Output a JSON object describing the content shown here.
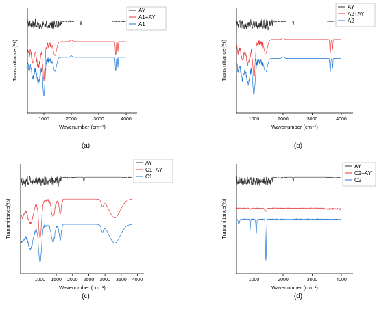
{
  "chart_data": [
    {
      "id": "a",
      "type": "line",
      "panel_label": "(a)",
      "xlabel": "Wavenumber (cm⁻¹)",
      "ylabel": "Transmittance (%)",
      "xlim": [
        400,
        4400
      ],
      "xticks": [
        1000,
        2000,
        3000,
        4000
      ],
      "legend_position": "top-right",
      "grid": false,
      "series": [
        {
          "name": "AY",
          "color": "#333333",
          "style": "ay",
          "offset": 0.12
        },
        {
          "name": "A1+AY",
          "color": "#e8393a",
          "style": "pair",
          "offset": 0.32
        },
        {
          "name": "A1",
          "color": "#1f77d4",
          "style": "pair",
          "offset": 0.47
        }
      ]
    },
    {
      "id": "b",
      "type": "line",
      "panel_label": "(b)",
      "xlabel": "Wavenumber (cm⁻¹)",
      "ylabel": "Transmittance (%)",
      "xlim": [
        400,
        4400
      ],
      "xticks": [
        1000,
        2000,
        3000,
        4000
      ],
      "legend_position": "top-right",
      "grid": false,
      "series": [
        {
          "name": "AY",
          "color": "#333333",
          "style": "ay",
          "offset": 0.12
        },
        {
          "name": "A2+AY",
          "color": "#e8393a",
          "style": "pair",
          "offset": 0.3
        },
        {
          "name": "A2",
          "color": "#1f77d4",
          "style": "pair",
          "offset": 0.48
        }
      ]
    },
    {
      "id": "c",
      "type": "line",
      "panel_label": "(c)",
      "xlabel": "Wavenumber (cm⁻¹)",
      "ylabel": "Transmittance(%)",
      "xlim": [
        400,
        4200
      ],
      "xticks": [
        1000,
        1500,
        2000,
        2500,
        3000,
        3500,
        4000
      ],
      "legend_position": "top-right",
      "grid": false,
      "series": [
        {
          "name": "AY",
          "color": "#333333",
          "style": "ay",
          "offset": 0.12
        },
        {
          "name": "C1+AY",
          "color": "#e8393a",
          "style": "broad",
          "offset": 0.32
        },
        {
          "name": "C1",
          "color": "#1f77d4",
          "style": "broad",
          "offset": 0.55
        }
      ]
    },
    {
      "id": "d",
      "type": "line",
      "panel_label": "(d)",
      "xlabel": "Wavenumber (cm⁻¹)",
      "ylabel": "Transmittance(%)",
      "xlim": [
        400,
        4400
      ],
      "xticks": [
        1000,
        2000,
        3000,
        4000
      ],
      "legend_position": "top-right",
      "grid": false,
      "series": [
        {
          "name": "AY",
          "color": "#333333",
          "style": "ay",
          "offset": 0.12
        },
        {
          "name": "C2+AY",
          "color": "#e8393a",
          "style": "flat",
          "offset": 0.4
        },
        {
          "name": "C2",
          "color": "#1f77d4",
          "style": "sharp",
          "offset": 0.5
        }
      ]
    }
  ]
}
